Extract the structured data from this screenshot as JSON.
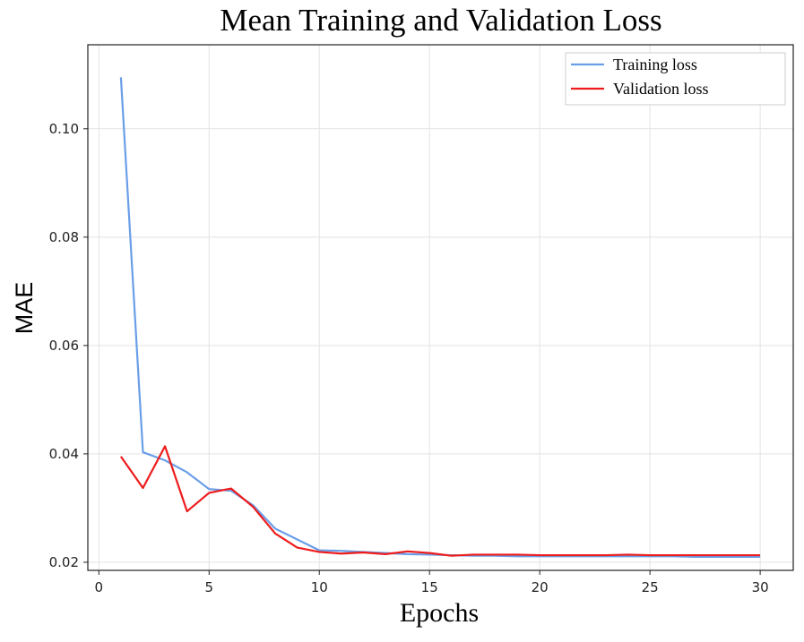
{
  "chart_data": {
    "type": "line",
    "title": "Mean Training and Validation Loss",
    "xlabel": "Epochs",
    "ylabel": "MAE",
    "xlim": [
      -0.5,
      31.5
    ],
    "ylim": [
      0.0185,
      0.1155
    ],
    "xticks": [
      0,
      5,
      10,
      15,
      20,
      25,
      30
    ],
    "yticks": [
      0.02,
      0.04,
      0.06,
      0.08,
      0.1
    ],
    "ytick_labels": [
      "0.02",
      "0.04",
      "0.06",
      "0.08",
      "0.10"
    ],
    "grid": true,
    "legend": {
      "placement": "top-right"
    },
    "x": [
      1,
      2,
      3,
      4,
      5,
      6,
      7,
      8,
      9,
      10,
      11,
      12,
      13,
      14,
      15,
      16,
      17,
      18,
      19,
      20,
      21,
      22,
      23,
      24,
      25,
      26,
      27,
      28,
      29,
      30
    ],
    "series": [
      {
        "name": "Training loss",
        "color": "#6a9ee8",
        "values": [
          0.1095,
          0.0403,
          0.0388,
          0.0366,
          0.0335,
          0.0332,
          0.0305,
          0.0262,
          0.0242,
          0.0222,
          0.0221,
          0.0219,
          0.0217,
          0.0215,
          0.0214,
          0.0213,
          0.0212,
          0.0212,
          0.0211,
          0.0211,
          0.0211,
          0.0211,
          0.0211,
          0.0211,
          0.0211,
          0.0211,
          0.021,
          0.021,
          0.021,
          0.021
        ]
      },
      {
        "name": "Validation loss",
        "color": "#ee1c1c",
        "values": [
          0.0395,
          0.0337,
          0.0414,
          0.0294,
          0.0328,
          0.0336,
          0.0302,
          0.0253,
          0.0227,
          0.0219,
          0.0216,
          0.0218,
          0.0215,
          0.022,
          0.0217,
          0.0212,
          0.0214,
          0.0214,
          0.0214,
          0.0213,
          0.0213,
          0.0213,
          0.0213,
          0.0214,
          0.0213,
          0.0213,
          0.0213,
          0.0213,
          0.0213,
          0.0213
        ]
      }
    ]
  }
}
